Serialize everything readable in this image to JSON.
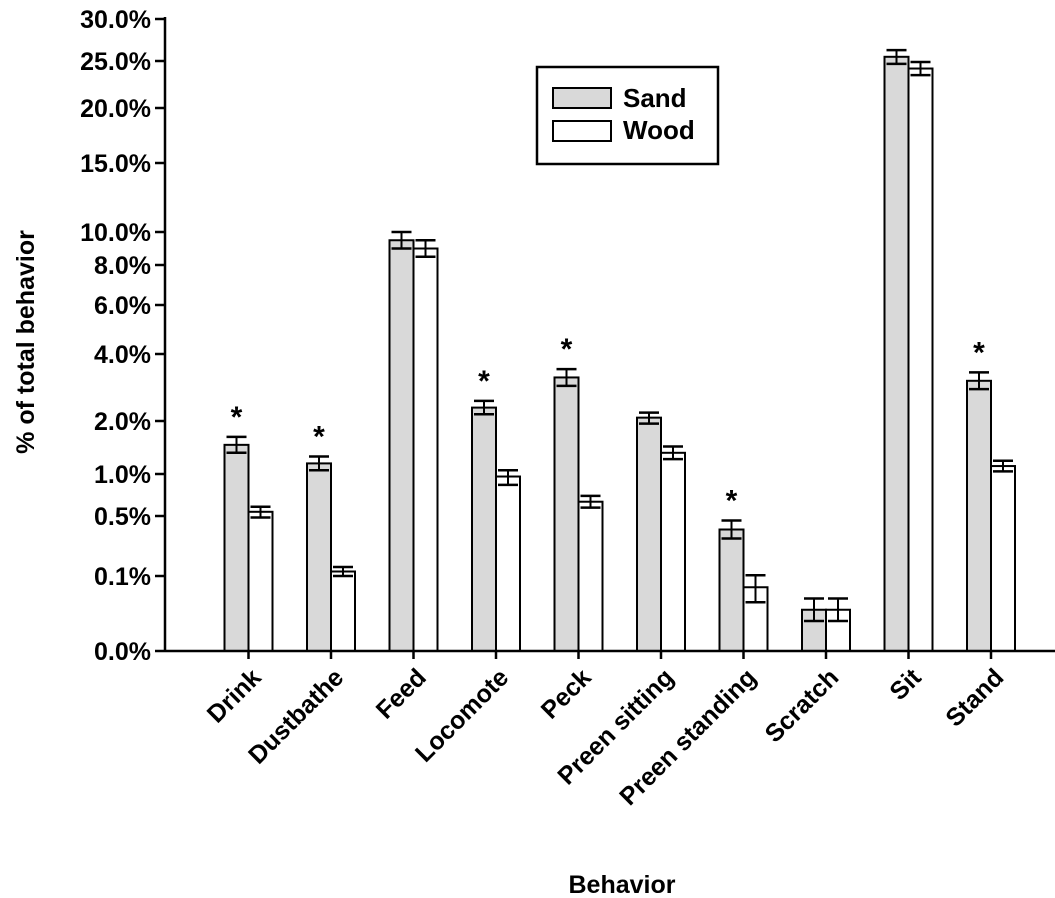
{
  "chart_data": {
    "type": "bar",
    "xlabel": "Behavior",
    "ylabel": "% of total behavior",
    "y_scale": "nonlinear (piecewise, per printed tick labels)",
    "y_ticks": [
      "0.0%",
      "0.1%",
      "0.5%",
      "1.0%",
      "2.0%",
      "4.0%",
      "6.0%",
      "8.0%",
      "10.0%",
      "15.0%",
      "20.0%",
      "25.0%",
      "30.0%"
    ],
    "y_tick_values": [
      0.0,
      0.1,
      0.5,
      1.0,
      2.0,
      4.0,
      6.0,
      8.0,
      10.0,
      15.0,
      20.0,
      25.0,
      30.0
    ],
    "ylim": [
      0,
      30
    ],
    "categories": [
      "Drink",
      "Dustbathe",
      "Feed",
      "Locomote",
      "Peck",
      "Preen sitting",
      "Preen standing",
      "Scratch",
      "Sit",
      "Stand"
    ],
    "series": [
      {
        "name": "Sand",
        "color": "#d9d9d9",
        "values": [
          1.55,
          1.2,
          9.5,
          2.4,
          3.3,
          2.1,
          0.41,
          0.055,
          25.5,
          3.2
        ],
        "error": [
          0.15,
          0.13,
          0.5,
          0.2,
          0.25,
          0.15,
          0.06,
          0.015,
          0.8,
          0.25
        ]
      },
      {
        "name": "Wood",
        "color": "#ffffff",
        "values": [
          0.55,
          0.13,
          9.0,
          0.97,
          0.67,
          1.4,
          0.085,
          0.055,
          24.2,
          1.15
        ],
        "error": [
          0.06,
          0.03,
          0.5,
          0.1,
          0.07,
          0.12,
          0.02,
          0.015,
          0.7,
          0.1
        ]
      }
    ],
    "significance_marks": [
      "*",
      "*",
      "",
      "*",
      "*",
      "",
      "*",
      "",
      "",
      "*"
    ],
    "legend_position": "top-center",
    "grid": false
  }
}
